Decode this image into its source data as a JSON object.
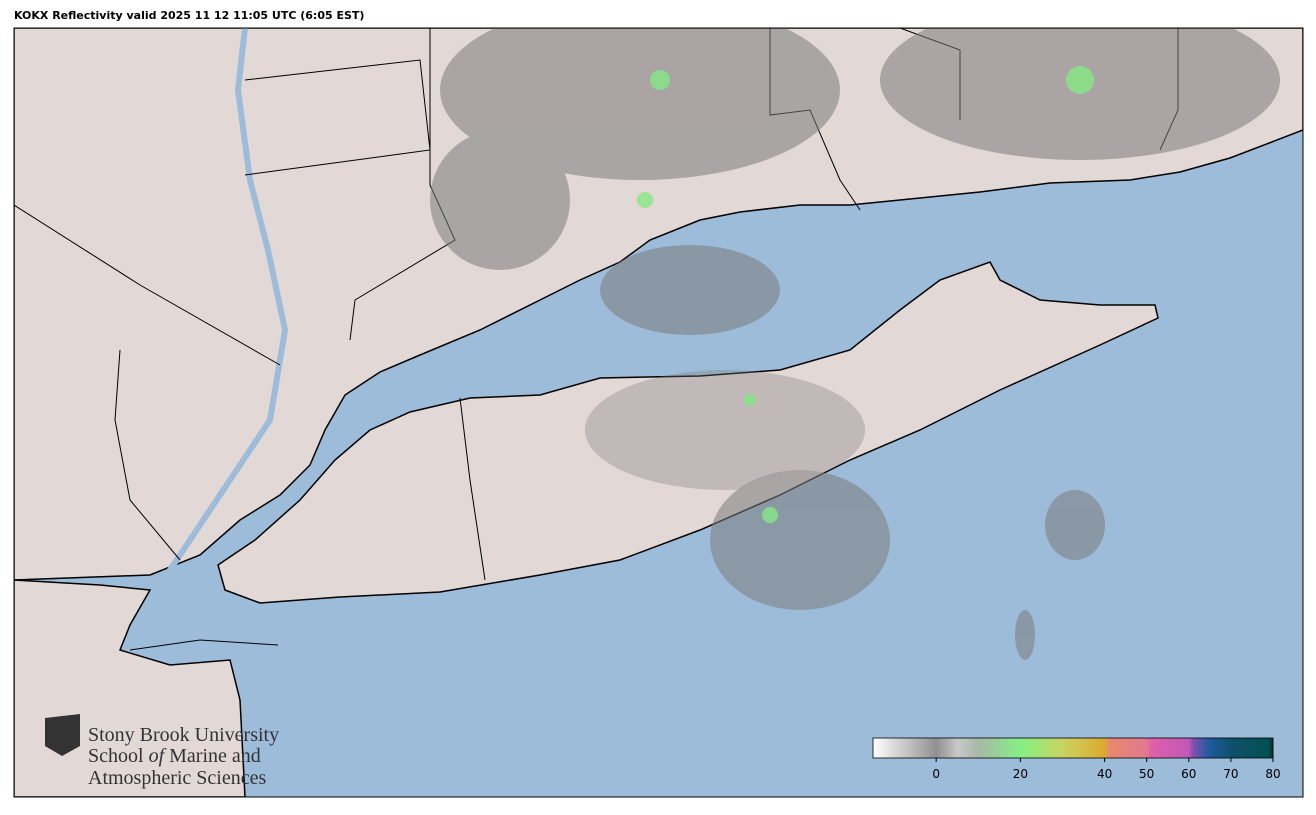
{
  "header": {
    "title": "KOKX Reflectivity valid 2025 11 12 11:05 UTC (6:05 EST)"
  },
  "logo": {
    "line1": "Stony Brook University",
    "line2": [
      "School",
      "of",
      "Marine and"
    ],
    "line3": "Atmospheric Sciences"
  },
  "colorbar": {
    "lim": [
      -15,
      80
    ],
    "ticks": [
      0,
      20,
      40,
      50,
      60,
      70,
      80
    ],
    "stops": [
      {
        "value": -15,
        "color": "#ffffff"
      },
      {
        "value": 0,
        "color": "#909090"
      },
      {
        "value": 5,
        "color": "#c8c8c8"
      },
      {
        "value": 10,
        "color": "#a8b8a8"
      },
      {
        "value": 20,
        "color": "#84f084"
      },
      {
        "value": 30,
        "color": "#c8d460"
      },
      {
        "value": 40,
        "color": "#dcaa30"
      },
      {
        "value": 41,
        "color": "#e88a6c"
      },
      {
        "value": 50,
        "color": "#e07890"
      },
      {
        "value": 51,
        "color": "#e060a8"
      },
      {
        "value": 60,
        "color": "#c058b8"
      },
      {
        "value": 61,
        "color": "#8050b0"
      },
      {
        "value": 65,
        "color": "#1c5c9c"
      },
      {
        "value": 70,
        "color": "#10506c"
      },
      {
        "value": 79,
        "color": "#005050"
      },
      {
        "value": 80,
        "color": "#002828"
      }
    ]
  }
}
